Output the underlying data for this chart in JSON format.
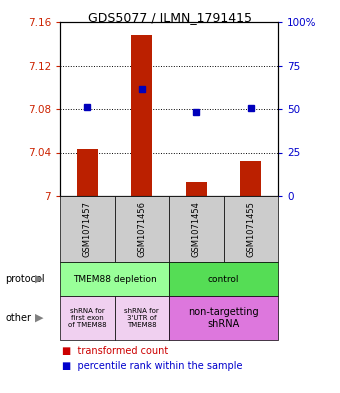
{
  "title": "GDS5077 / ILMN_1791415",
  "samples": [
    "GSM1071457",
    "GSM1071456",
    "GSM1071454",
    "GSM1071455"
  ],
  "bar_values": [
    7.043,
    7.148,
    7.013,
    7.032
  ],
  "bar_base": 7.0,
  "percentile_values": [
    7.082,
    7.098,
    7.077,
    7.081
  ],
  "ylim": [
    7.0,
    7.16
  ],
  "yticks_left": [
    7.0,
    7.04,
    7.08,
    7.12,
    7.16
  ],
  "yticks_left_labels": [
    "7",
    "7.04",
    "7.08",
    "7.12",
    "7.16"
  ],
  "yticks_right_vals": [
    0,
    25,
    50,
    75,
    100
  ],
  "yticks_right_labels": [
    "0",
    "25",
    "50",
    "75",
    "100%"
  ],
  "bar_color": "#bb2000",
  "dot_color": "#0000bb",
  "sample_bg": "#cccccc",
  "protocol_color_left": "#99ff99",
  "protocol_color_right": "#55dd55",
  "other_color_left1": "#f0d0f0",
  "other_color_left2": "#f0d0f0",
  "other_color_right": "#dd77dd",
  "legend_bar_color": "#cc0000",
  "legend_dot_color": "#0000cc"
}
